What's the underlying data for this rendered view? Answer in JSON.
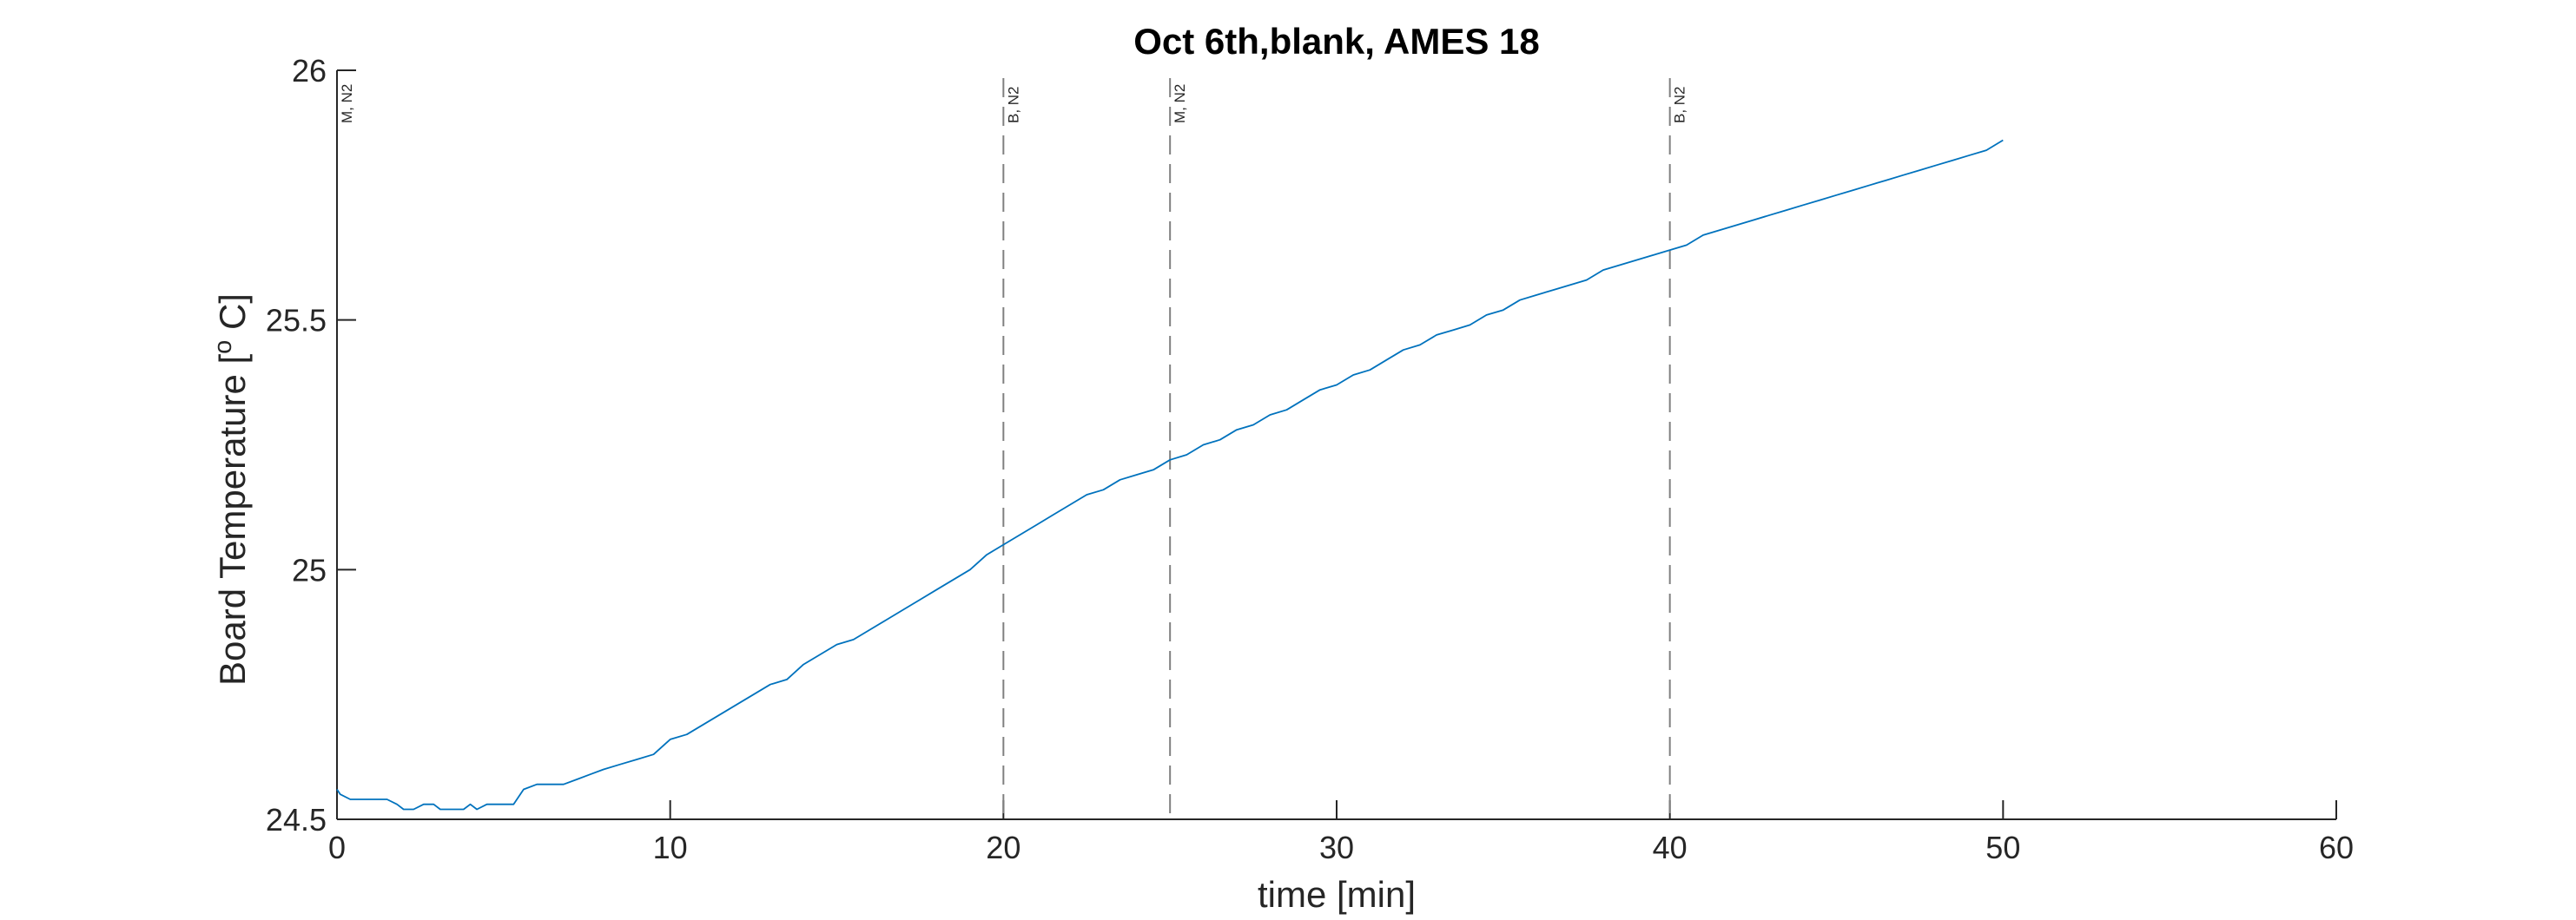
{
  "chart_data": {
    "type": "line",
    "title": "Oct 6th,blank, AMES 18",
    "xlabel": "time [min]",
    "ylabel_main": "Board Temperature [",
    "ylabel_sup": "o",
    "ylabel_end": " C]",
    "xlim": [
      0,
      60
    ],
    "ylim": [
      24.5,
      26
    ],
    "xticks": [
      0,
      10,
      20,
      30,
      40,
      50,
      60
    ],
    "xtick_labels": [
      "0",
      "10",
      "20",
      "30",
      "40",
      "50",
      "60"
    ],
    "yticks": [
      24.5,
      25,
      25.5,
      26
    ],
    "ytick_labels": [
      "24.5",
      "25",
      "25.5",
      "26"
    ],
    "grid": false,
    "series": [
      {
        "color": "#0072BD",
        "points": [
          [
            0.0,
            24.56
          ],
          [
            0.1,
            24.55
          ],
          [
            0.4,
            24.54
          ],
          [
            1.0,
            24.54
          ],
          [
            1.5,
            24.54
          ],
          [
            1.8,
            24.53
          ],
          [
            2.0,
            24.52
          ],
          [
            2.3,
            24.52
          ],
          [
            2.6,
            24.53
          ],
          [
            2.9,
            24.53
          ],
          [
            3.1,
            24.52
          ],
          [
            3.5,
            24.52
          ],
          [
            3.8,
            24.52
          ],
          [
            4.0,
            24.53
          ],
          [
            4.2,
            24.52
          ],
          [
            4.5,
            24.53
          ],
          [
            5.0,
            24.53
          ],
          [
            5.3,
            24.53
          ],
          [
            5.6,
            24.56
          ],
          [
            6.0,
            24.57
          ],
          [
            6.8,
            24.57
          ],
          [
            7.2,
            24.58
          ],
          [
            7.6,
            24.59
          ],
          [
            8.0,
            24.6
          ],
          [
            8.5,
            24.61
          ],
          [
            9.0,
            24.62
          ],
          [
            9.5,
            24.63
          ],
          [
            10.0,
            24.66
          ],
          [
            10.5,
            24.67
          ],
          [
            11.0,
            24.69
          ],
          [
            11.5,
            24.71
          ],
          [
            12.0,
            24.73
          ],
          [
            12.5,
            24.75
          ],
          [
            13.0,
            24.77
          ],
          [
            13.5,
            24.78
          ],
          [
            14.0,
            24.81
          ],
          [
            14.5,
            24.83
          ],
          [
            15.0,
            24.85
          ],
          [
            15.5,
            24.86
          ],
          [
            16.0,
            24.88
          ],
          [
            16.5,
            24.9
          ],
          [
            17.0,
            24.92
          ],
          [
            17.5,
            24.94
          ],
          [
            18.0,
            24.96
          ],
          [
            18.5,
            24.98
          ],
          [
            19.0,
            25.0
          ],
          [
            19.5,
            25.03
          ],
          [
            20.0,
            25.05
          ],
          [
            20.5,
            25.07
          ],
          [
            21.0,
            25.09
          ],
          [
            21.5,
            25.11
          ],
          [
            22.0,
            25.13
          ],
          [
            22.5,
            25.15
          ],
          [
            23.0,
            25.16
          ],
          [
            23.5,
            25.18
          ],
          [
            24.0,
            25.19
          ],
          [
            24.5,
            25.2
          ],
          [
            25.0,
            25.22
          ],
          [
            25.5,
            25.23
          ],
          [
            26.0,
            25.25
          ],
          [
            26.5,
            25.26
          ],
          [
            27.0,
            25.28
          ],
          [
            27.5,
            25.29
          ],
          [
            28.0,
            25.31
          ],
          [
            28.5,
            25.32
          ],
          [
            29.0,
            25.34
          ],
          [
            29.5,
            25.36
          ],
          [
            30.0,
            25.37
          ],
          [
            30.5,
            25.39
          ],
          [
            31.0,
            25.4
          ],
          [
            31.5,
            25.42
          ],
          [
            32.0,
            25.44
          ],
          [
            32.5,
            25.45
          ],
          [
            33.0,
            25.47
          ],
          [
            33.5,
            25.48
          ],
          [
            34.0,
            25.49
          ],
          [
            34.5,
            25.51
          ],
          [
            35.0,
            25.52
          ],
          [
            35.5,
            25.54
          ],
          [
            36.0,
            25.55
          ],
          [
            36.5,
            25.56
          ],
          [
            37.0,
            25.57
          ],
          [
            37.5,
            25.58
          ],
          [
            38.0,
            25.6
          ],
          [
            38.5,
            25.61
          ],
          [
            39.0,
            25.62
          ],
          [
            39.5,
            25.63
          ],
          [
            40.0,
            25.64
          ],
          [
            40.5,
            25.65
          ],
          [
            41.0,
            25.67
          ],
          [
            41.5,
            25.68
          ],
          [
            42.0,
            25.69
          ],
          [
            42.5,
            25.7
          ],
          [
            43.0,
            25.71
          ],
          [
            43.5,
            25.72
          ],
          [
            44.0,
            25.73
          ],
          [
            44.5,
            25.74
          ],
          [
            45.0,
            25.75
          ],
          [
            45.5,
            25.76
          ],
          [
            46.0,
            25.77
          ],
          [
            46.5,
            25.78
          ],
          [
            47.0,
            25.79
          ],
          [
            47.5,
            25.8
          ],
          [
            48.0,
            25.81
          ],
          [
            48.5,
            25.82
          ],
          [
            49.0,
            25.83
          ],
          [
            49.5,
            25.84
          ],
          [
            50.0,
            25.86
          ]
        ]
      }
    ],
    "markers": [
      {
        "x": 0,
        "label": "M, N2"
      },
      {
        "x": 20,
        "label": "B, N2"
      },
      {
        "x": 25,
        "label": "M, N2"
      },
      {
        "x": 40,
        "label": "B, N2"
      }
    ]
  }
}
